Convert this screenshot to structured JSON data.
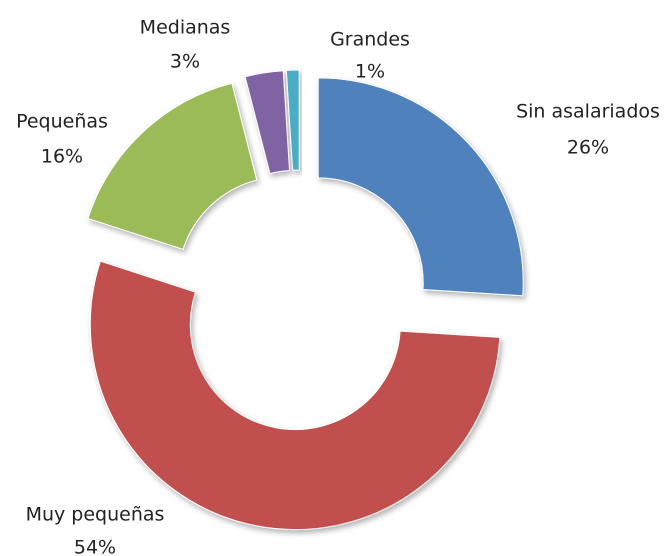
{
  "chart_data": {
    "type": "donut",
    "categories": [
      "Sin asalariados",
      "Muy pequeñas",
      "Pequeñas",
      "Medianas",
      "Grandes"
    ],
    "values": [
      26,
      54,
      16,
      3,
      1
    ],
    "value_labels": [
      "26%",
      "54%",
      "16%",
      "3%",
      "1%"
    ],
    "colors": [
      "#4f81bd",
      "#c0504d",
      "#9bbb59",
      "#8064a2",
      "#4bacc6"
    ]
  }
}
